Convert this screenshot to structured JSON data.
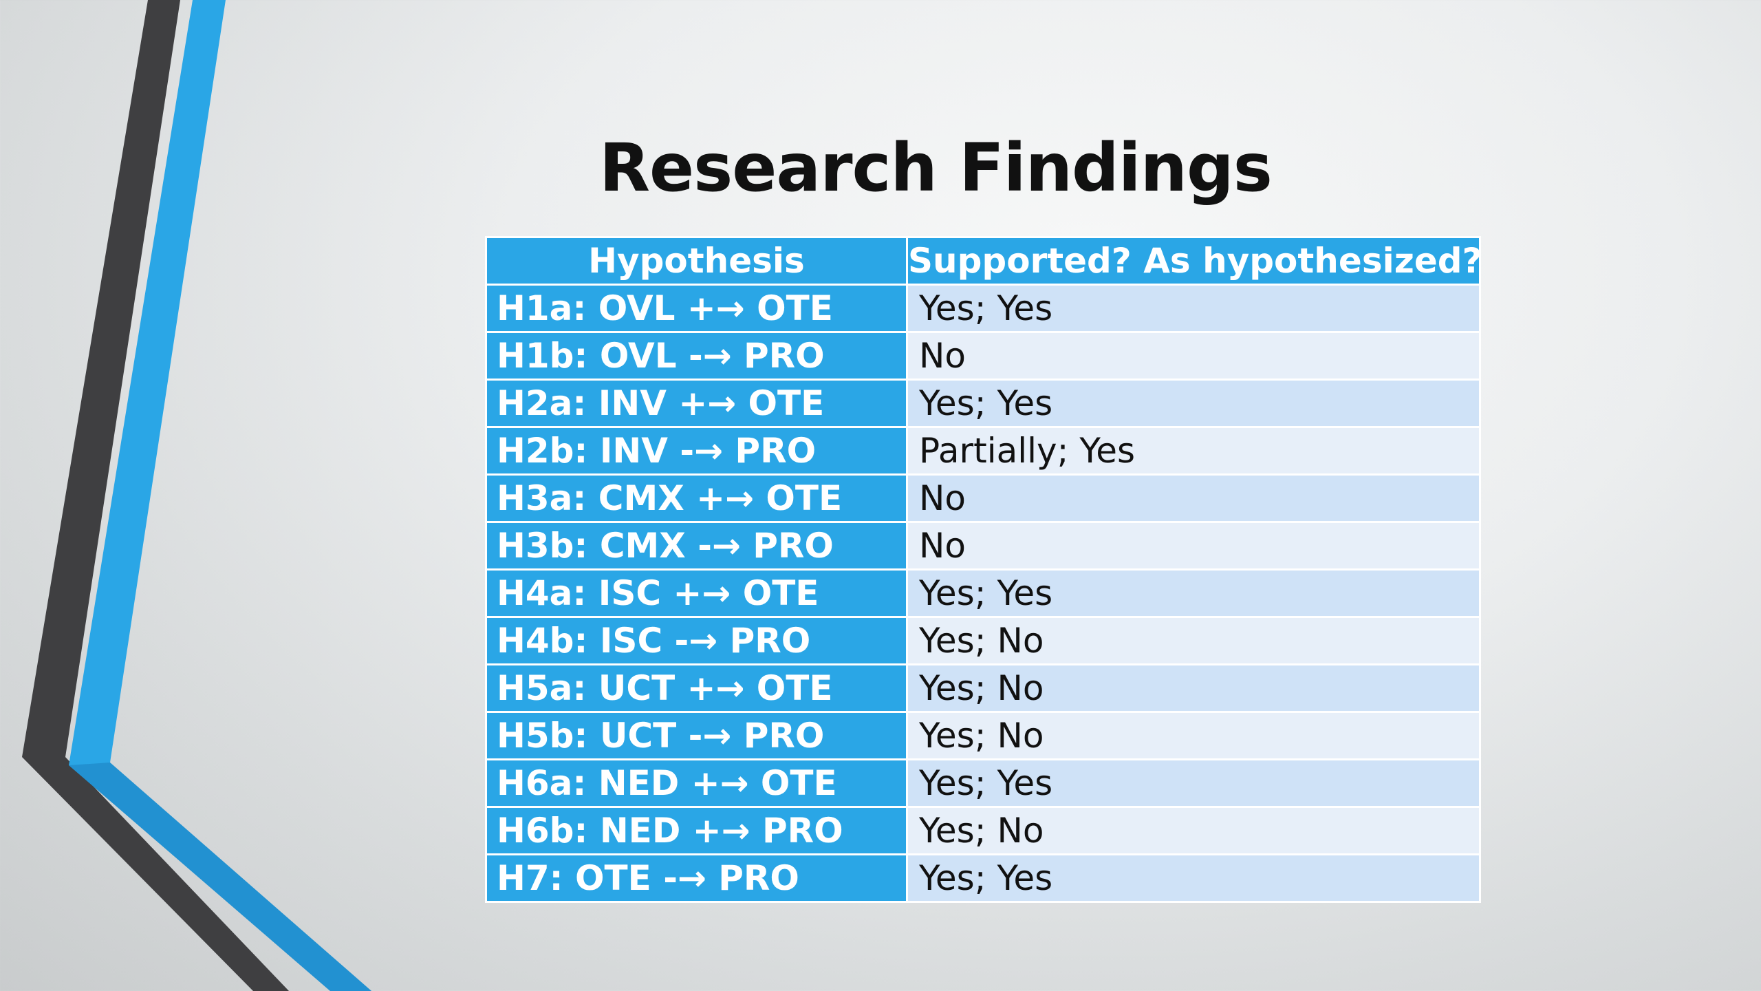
{
  "slide": {
    "title": "Research Findings"
  },
  "table": {
    "headers": {
      "hypothesis": "Hypothesis",
      "supported": "Supported? As hypothesized?"
    },
    "rows": [
      {
        "hypothesis": "H1a: OVL +→ OTE",
        "result": "Yes; Yes"
      },
      {
        "hypothesis": "H1b: OVL -→ PRO",
        "result": "No"
      },
      {
        "hypothesis": "H2a: INV +→ OTE",
        "result": "Yes; Yes"
      },
      {
        "hypothesis": "H2b: INV -→ PRO",
        "result": "Partially; Yes"
      },
      {
        "hypothesis": "H3a: CMX +→ OTE",
        "result": "No"
      },
      {
        "hypothesis": "H3b: CMX -→ PRO",
        "result": "No"
      },
      {
        "hypothesis": "H4a: ISC +→ OTE",
        "result": "Yes; Yes"
      },
      {
        "hypothesis": "H4b: ISC -→ PRO",
        "result": "Yes; No"
      },
      {
        "hypothesis": "H5a: UCT +→ OTE",
        "result": "Yes; No"
      },
      {
        "hypothesis": "H5b: UCT -→ PRO",
        "result": "Yes; No"
      },
      {
        "hypothesis": "H6a: NED +→ OTE",
        "result": "Yes; Yes"
      },
      {
        "hypothesis": "H6b: NED +→ PRO",
        "result": "Yes; No"
      },
      {
        "hypothesis": "H7: OTE -→ PRO",
        "result": "Yes; Yes"
      }
    ]
  },
  "colors": {
    "accent_blue": "#2aa6e6",
    "dark_gray": "#3f3f41",
    "row_light": "#e7eff9",
    "row_medium": "#cfe2f7"
  }
}
